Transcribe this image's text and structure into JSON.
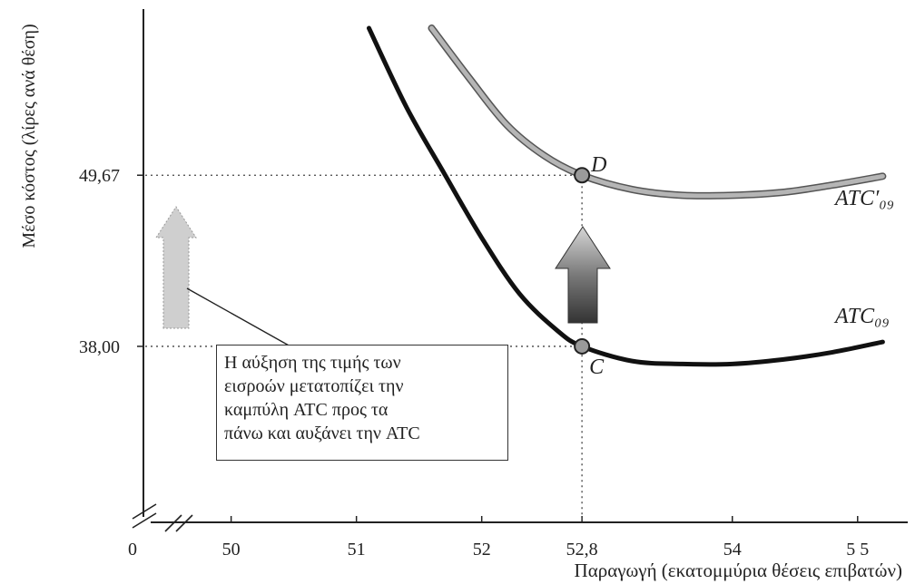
{
  "chart_data": {
    "type": "line",
    "xlabel": "Παραγωγή (εκατομμύρια θέσεις επιβατών)",
    "ylabel": "Μέσο κόστος (λίρες ανά θέση)",
    "x_ticks": [
      {
        "value": 50,
        "label": "50"
      },
      {
        "value": 51,
        "label": "51"
      },
      {
        "value": 52,
        "label": "52"
      },
      {
        "value": 52.8,
        "label": "52,8"
      },
      {
        "value": 54,
        "label": "54"
      },
      {
        "value": 55,
        "label": "5 5"
      }
    ],
    "x_origin_label": "0",
    "y_ticks": [
      {
        "value": 38.0,
        "label": "38,00"
      },
      {
        "value": 49.67,
        "label": "49,67"
      }
    ],
    "xlim": [
      49.3,
      55.4
    ],
    "ylim": [
      26.0,
      61.0
    ],
    "axis_breaks": true,
    "grid": false,
    "series": [
      {
        "name": "ATC₀₉",
        "color": "#111111",
        "x": [
          51.1,
          51.4,
          51.7,
          52.0,
          52.3,
          52.6,
          52.8,
          53.2,
          53.6,
          54.0,
          54.4,
          54.8,
          55.2
        ],
        "y": [
          59.7,
          54.3,
          49.8,
          45.4,
          41.6,
          39.1,
          38.0,
          37.0,
          36.8,
          36.8,
          37.1,
          37.6,
          38.3
        ]
      },
      {
        "name": "ATC′₀₉",
        "color": "#8a8a8a",
        "x": [
          51.6,
          51.9,
          52.2,
          52.5,
          52.8,
          53.2,
          53.6,
          54.0,
          54.4,
          54.8,
          55.2
        ],
        "y": [
          59.7,
          56.3,
          53.1,
          51.0,
          49.67,
          48.7,
          48.3,
          48.3,
          48.5,
          49.0,
          49.6
        ]
      }
    ],
    "points": [
      {
        "label": "C",
        "x": 52.8,
        "y": 38.0
      },
      {
        "label": "D",
        "x": 52.8,
        "y": 49.67
      }
    ],
    "annotation": {
      "lines": [
        "Η αύξηση της τιμής των",
        "εισροών μετατοπίζει την",
        "καμπύλη ATC προς τα",
        "πάνω και αυξάνει την ATC"
      ]
    },
    "colors": {
      "atc": "#111111",
      "atc_shifted": "#8a8a8a",
      "axis": "#222222",
      "arrow_big": "#555555",
      "arrow_small": "#c4c4c4"
    }
  }
}
